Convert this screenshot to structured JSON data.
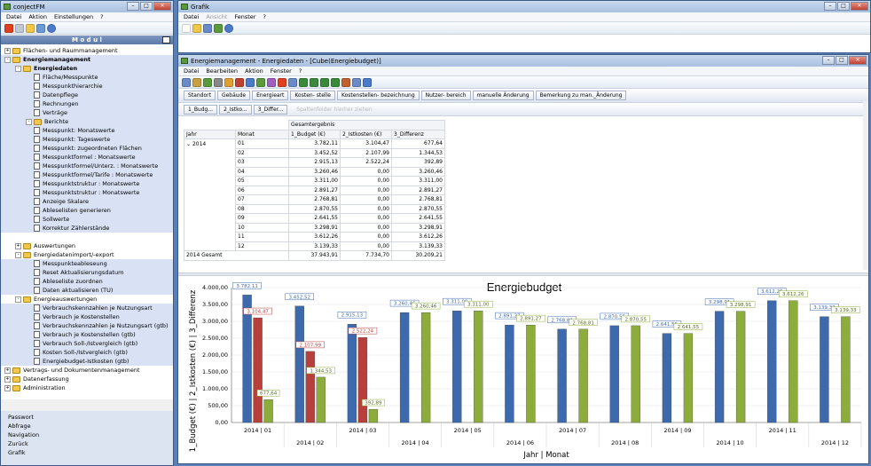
{
  "left_window": {
    "title": "conjectFM",
    "menu": [
      "Datei",
      "Aktion",
      "Einstellungen",
      "?"
    ],
    "modul_label": "M o d u l",
    "tree": [
      {
        "label": "Flächen- und Raummanagement",
        "level": 0,
        "type": "folder",
        "exp": "+"
      },
      {
        "label": "Energiemanagement",
        "level": 0,
        "type": "folder",
        "exp": "-",
        "bold": true,
        "hl": true
      },
      {
        "label": "Energiedaten",
        "level": 1,
        "type": "folder",
        "exp": "-",
        "bold": true,
        "hl": true
      },
      {
        "label": "Fläche/Messpunkte",
        "level": 2,
        "type": "doc",
        "hl": true
      },
      {
        "label": "Messpunkthierarchie",
        "level": 2,
        "type": "doc",
        "hl": true
      },
      {
        "label": "Datenpflege",
        "level": 2,
        "type": "doc",
        "hl": true
      },
      {
        "label": "Rechnungen",
        "level": 2,
        "type": "doc",
        "hl": true
      },
      {
        "label": "Verträge",
        "level": 2,
        "type": "doc",
        "hl": true
      },
      {
        "label": "Berichte",
        "level": 2,
        "type": "folder",
        "exp": "-",
        "hl": true
      },
      {
        "label": "Messpunkt: Monatswerte",
        "level": 2,
        "type": "doc",
        "hl": true
      },
      {
        "label": "Messpunkt: Tageswerte",
        "level": 2,
        "type": "doc",
        "hl": true
      },
      {
        "label": "Messpunkt: zugeordneten Flächen",
        "level": 2,
        "type": "doc",
        "hl": true
      },
      {
        "label": "Messpunktformel : Monatswerte",
        "level": 2,
        "type": "doc",
        "hl": true
      },
      {
        "label": "Messpunktformel/Unterz. : Monatswerte",
        "level": 2,
        "type": "doc",
        "hl": true
      },
      {
        "label": "Messpunktformel/Tarife : Monatswerte",
        "level": 2,
        "type": "doc",
        "hl": true
      },
      {
        "label": "Messpunktstruktur : Monatswerte",
        "level": 2,
        "type": "doc",
        "hl": true
      },
      {
        "label": "Messpunktstruktur : Monatswerte",
        "level": 2,
        "type": "doc",
        "hl": true
      },
      {
        "label": "Anzeige Skalare",
        "level": 2,
        "type": "doc",
        "hl": true
      },
      {
        "label": "Ableselisten generieren",
        "level": 2,
        "type": "doc",
        "hl": true
      },
      {
        "label": "Sollwerte",
        "level": 2,
        "type": "doc",
        "hl": true
      },
      {
        "label": "Korrektur Zählerstände",
        "level": 2,
        "type": "doc",
        "hl": true
      },
      {
        "label": "",
        "level": 2,
        "type": "spacer"
      },
      {
        "label": "Auswertungen",
        "level": 1,
        "type": "folder",
        "exp": "+"
      },
      {
        "label": "Energiedatenimport/-export",
        "level": 1,
        "type": "folder",
        "exp": "-"
      },
      {
        "label": "Messpunkteableseung",
        "level": 2,
        "type": "doc",
        "hl": true
      },
      {
        "label": "Reset Aktualisierungsdatum",
        "level": 2,
        "type": "doc",
        "hl": true
      },
      {
        "label": "Ableseliste zuordnen",
        "level": 2,
        "type": "doc",
        "hl": true
      },
      {
        "label": "Daten aktualisieren (TU)",
        "level": 2,
        "type": "doc",
        "hl": true
      },
      {
        "label": "Energieauswertungen",
        "level": 1,
        "type": "folder",
        "exp": "-"
      },
      {
        "label": "Verbrauchskennzahlen je Nutzungsart",
        "level": 2,
        "type": "doc",
        "hl": true
      },
      {
        "label": "Verbrauch je Kostenstellen",
        "level": 2,
        "type": "doc",
        "hl": true
      },
      {
        "label": "Verbrauchskennzahlen je Nutzungsart (gtb)",
        "level": 2,
        "type": "doc",
        "hl": true
      },
      {
        "label": "Verbrauch je Kostenstellen (gtb)",
        "level": 2,
        "type": "doc",
        "hl": true
      },
      {
        "label": "Verbrauch Soll-/Istvergleich (gtb)",
        "level": 2,
        "type": "doc",
        "hl": true
      },
      {
        "label": "Kosten Soll-/Istvergleich (gtb)",
        "level": 2,
        "type": "doc",
        "hl": true
      },
      {
        "label": "Energiebudget-Istkosten (gtb)",
        "level": 2,
        "type": "doc",
        "hl": true
      },
      {
        "label": "Vertrags- und Dokumentenmanagement",
        "level": 0,
        "type": "folder",
        "exp": "+"
      },
      {
        "label": "Datenerfassung",
        "level": 0,
        "type": "folder",
        "exp": "+"
      },
      {
        "label": "Administration",
        "level": 0,
        "type": "folder",
        "exp": "+"
      }
    ],
    "bottom_links": [
      "Passwort",
      "Abfrage",
      "Navigation",
      "Zurück",
      "Grafik"
    ]
  },
  "grafik_window": {
    "title": "Grafik",
    "menu": [
      "Datei",
      "Ansicht",
      "Fenster",
      "?"
    ]
  },
  "main_window": {
    "title": "Energiemanagement - Energiedaten - [Cube(Energiebudget)]",
    "menu": [
      "Datei",
      "Bearbeiten",
      "Aktion",
      "Fenster",
      "?"
    ],
    "filters": [
      "Standort",
      "Gebäude",
      "Energieart",
      "Kosten- stelle",
      "Kostenstellen- bezeichnung",
      "Nutzer- bereich",
      "manuelle Änderung",
      "Bemerkung zu man._Änderung"
    ],
    "data_fields": [
      "1_Budg...",
      "2_Istko...",
      "3_Differ..."
    ],
    "data_area_hint": "Spaltenfelder hierher ziehen",
    "pivot": {
      "col_header": "Gesamtergebnis",
      "row_headers": [
        "Jahr",
        "Monat"
      ],
      "measures": [
        "1_Budget (€)",
        "2_Istkosten (€)",
        "3_Differenz"
      ],
      "year": "2014",
      "rows": [
        {
          "month": "01",
          "v": [
            "3.782,11",
            "3.104,47",
            "677,64"
          ]
        },
        {
          "month": "02",
          "v": [
            "3.452,52",
            "2.107,99",
            "1.344,53"
          ]
        },
        {
          "month": "03",
          "v": [
            "2.915,13",
            "2.522,24",
            "392,89"
          ]
        },
        {
          "month": "04",
          "v": [
            "3.260,46",
            "0,00",
            "3.260,46"
          ]
        },
        {
          "month": "05",
          "v": [
            "3.311,00",
            "0,00",
            "3.311,00"
          ]
        },
        {
          "month": "06",
          "v": [
            "2.891,27",
            "0,00",
            "2.891,27"
          ]
        },
        {
          "month": "07",
          "v": [
            "2.768,81",
            "0,00",
            "2.768,81"
          ]
        },
        {
          "month": "08",
          "v": [
            "2.870,55",
            "0,00",
            "2.870,55"
          ]
        },
        {
          "month": "09",
          "v": [
            "2.641,55",
            "0,00",
            "2.641,55"
          ]
        },
        {
          "month": "10",
          "v": [
            "3.298,91",
            "0,00",
            "3.298,91"
          ]
        },
        {
          "month": "11",
          "v": [
            "3.612,26",
            "0,00",
            "3.612,26"
          ]
        },
        {
          "month": "12",
          "v": [
            "3.139,33",
            "0,00",
            "3.139,33"
          ]
        }
      ],
      "total_label": "2014 Gesamt",
      "total": [
        "37.943,91",
        "7.734,70",
        "30.209,21"
      ]
    }
  },
  "chart_data": {
    "type": "bar",
    "title": "Energiebudget",
    "xlabel": "Jahr | Monat",
    "ylabel": "1_Budget (€) | 2_Istkosten (€) | 3_Differenz",
    "ylim": [
      0,
      4000
    ],
    "yticks": [
      "0,00",
      "500,00",
      "1.000,00",
      "1.500,00",
      "2.000,00",
      "2.500,00",
      "3.000,00",
      "3.500,00",
      "4.000,00"
    ],
    "categories": [
      "2014 | 01",
      "2014 | 02",
      "2014 | 03",
      "2014 | 04",
      "2014 | 05",
      "2014 | 06",
      "2014 | 07",
      "2014 | 08",
      "2014 | 09",
      "2014 | 10",
      "2014 | 11",
      "2014 | 12"
    ],
    "series": [
      {
        "color": "#3d6aad",
        "values": [
          3782.11,
          3452.52,
          2915.13,
          3260.46,
          3311.0,
          2891.27,
          2768.81,
          2870.55,
          2641.55,
          3298.91,
          3612.26,
          3139.33
        ],
        "labels": [
          "3.782,11",
          "3.452,52",
          "2.915,13",
          "3.260,46",
          "3.311,00",
          "2.891,27",
          "2.768,81",
          "2.870,55",
          "2.641,55",
          "3.298,91",
          "3.612,26",
          "3.139,33"
        ]
      },
      {
        "color": "#b8403c",
        "values": [
          3104.47,
          2107.99,
          2522.24,
          0,
          0,
          0,
          0,
          0,
          0,
          0,
          0,
          0
        ],
        "labels": [
          "3.104,47",
          "2.107,99",
          "2.522,24",
          "",
          "",
          "",
          "",
          "",
          "",
          "",
          "",
          ""
        ]
      },
      {
        "color": "#8cad3c",
        "values": [
          677.64,
          1344.53,
          392.89,
          3260.46,
          3311.0,
          2891.27,
          2768.81,
          2870.55,
          2641.55,
          3298.91,
          3612.26,
          3139.33
        ],
        "labels": [
          "677,64",
          "1.344,53",
          "392,89",
          "3.260,46",
          "3.311,00",
          "2.891,27",
          "2.768,81",
          "2.870,55",
          "2.641,55",
          "3.298,91",
          "3.612,26",
          "3.139,33"
        ]
      }
    ]
  }
}
